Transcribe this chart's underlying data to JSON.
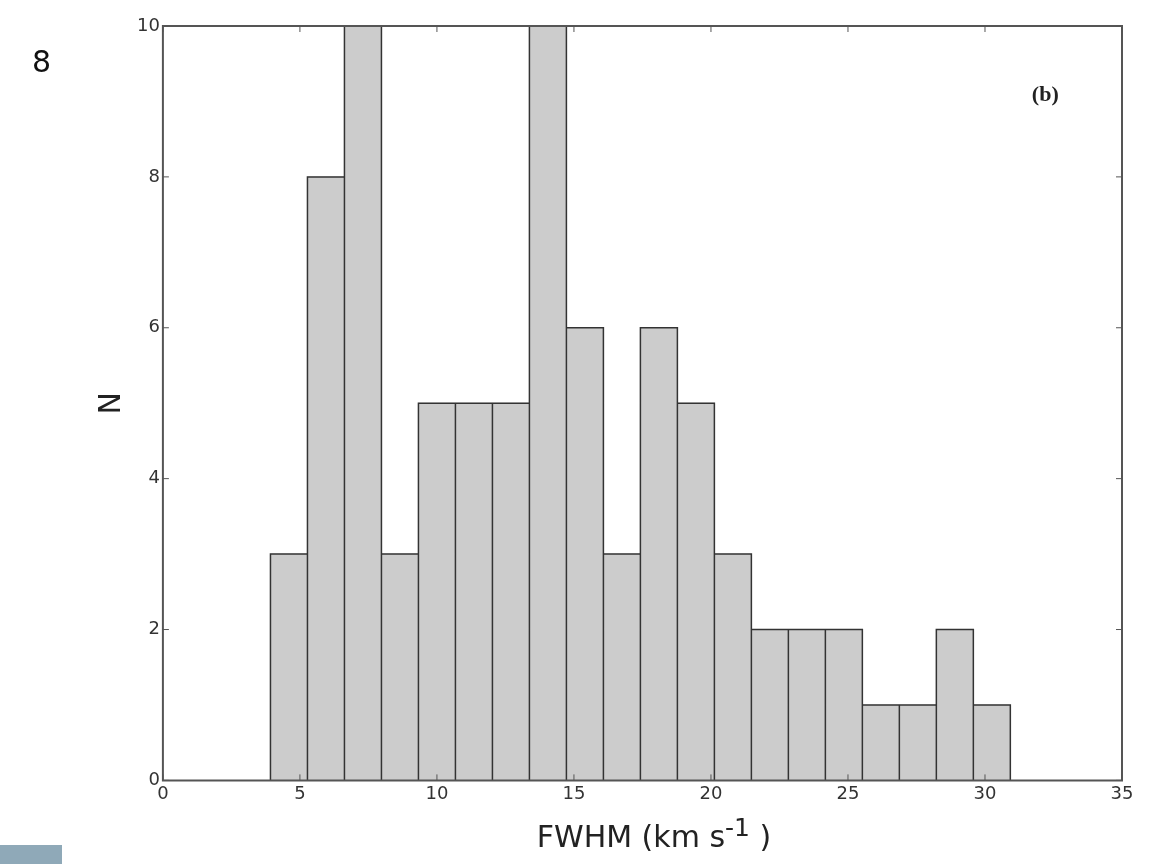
{
  "chart_data": {
    "type": "histogram",
    "xlabel": "FWHM (km s$^{-1}$ )",
    "ylabel": "N",
    "bins": [
      3.9,
      5.3,
      6.6,
      8.0,
      9.3,
      10.7,
      12.0,
      13.4,
      14.7,
      16.1,
      17.4,
      18.8,
      20.1,
      21.5,
      22.8,
      24.2,
      25.5,
      26.9,
      28.2,
      29.6,
      30.9
    ],
    "values": [
      3,
      8,
      10,
      3,
      5,
      5,
      5,
      10,
      6,
      3,
      6,
      5,
      3,
      2,
      2,
      2,
      1,
      1,
      2,
      1
    ],
    "color": "#cccccc",
    "xlim": [
      0,
      35
    ],
    "xticks": [
      0,
      5,
      10,
      15,
      20,
      25,
      30,
      35
    ],
    "ylim": [
      0,
      10
    ],
    "yticks": [
      0,
      2,
      4,
      6,
      8,
      10
    ],
    "grid": false,
    "annotations": [
      "(b)",
      "8"
    ]
  }
}
